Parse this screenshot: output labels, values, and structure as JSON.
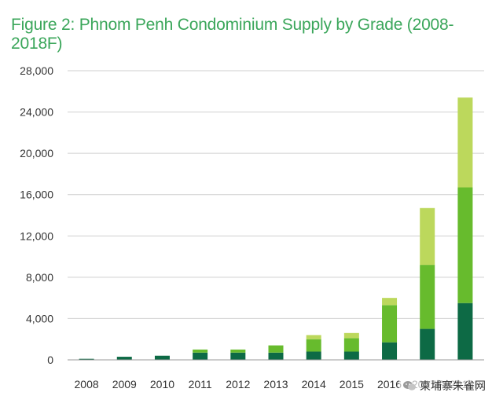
{
  "title": "Figure 2: Phnom Penh Condominium Supply by Grade (2008-2018F)",
  "colors": {
    "title": "#3aa65a",
    "grid": "#cfcfcf",
    "axis": "#9a9a9a",
    "grade_1": "#0d6a45",
    "grade_2": "#67bb2d",
    "grade_3": "#bcd85c"
  },
  "watermark": {
    "icon": "wechat-icon",
    "text": "柬埔寨朱雀网"
  },
  "chart_data": {
    "type": "bar",
    "stacked": true,
    "title": "Figure 2: Phnom Penh Condominium Supply by Grade (2008-2018F)",
    "xlabel": "",
    "ylabel": "",
    "categories": [
      "2008",
      "2009",
      "2010",
      "2011",
      "2012",
      "2013",
      "2014",
      "2015",
      "2016",
      "2017F",
      "2018F"
    ],
    "series": [
      {
        "values": [
          100,
          300,
          400,
          700,
          700,
          700,
          800,
          800,
          1700,
          3000,
          5500
        ],
        "color": "#0d6a45"
      },
      {
        "values": [
          0,
          0,
          0,
          300,
          300,
          700,
          1200,
          1300,
          3600,
          6200,
          11200
        ],
        "color": "#67bb2d"
      },
      {
        "values": [
          0,
          0,
          0,
          0,
          0,
          0,
          400,
          500,
          700,
          5500,
          8700
        ],
        "color": "#bcd85c"
      }
    ],
    "ylim": [
      0,
      28000
    ],
    "yticks": [
      "0",
      "4,000",
      "8,000",
      "12,000",
      "16,000",
      "20,000",
      "24,000",
      "28,000"
    ],
    "ytick_values": [
      0,
      4000,
      8000,
      12000,
      16000,
      20000,
      24000,
      28000
    ],
    "grid": true,
    "legend": "none"
  }
}
